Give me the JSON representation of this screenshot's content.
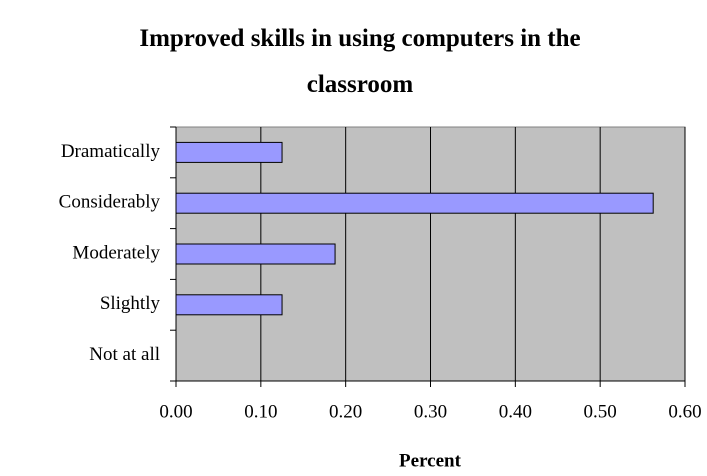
{
  "chart_data": {
    "type": "bar",
    "orientation": "horizontal",
    "title": "Improved skills in using computers in the classroom",
    "x_label": "Percent",
    "categories": [
      "Dramatically",
      "Considerably",
      "Moderately",
      "Slightly",
      "Not at all"
    ],
    "values": [
      0.125,
      0.5625,
      0.1875,
      0.125,
      0
    ],
    "color": "#9999ff",
    "xlim": [
      0,
      0.6
    ],
    "xticks": [
      {
        "value": 0,
        "label": "0.00"
      },
      {
        "value": 0.1,
        "label": "0.10"
      },
      {
        "value": 0.2,
        "label": "0.20"
      },
      {
        "value": 0.3,
        "label": "0.30"
      },
      {
        "value": 0.4,
        "label": "0.40"
      },
      {
        "value": 0.5,
        "label": "0.50"
      },
      {
        "value": 0.6,
        "label": "0.60"
      }
    ],
    "grid": true
  }
}
